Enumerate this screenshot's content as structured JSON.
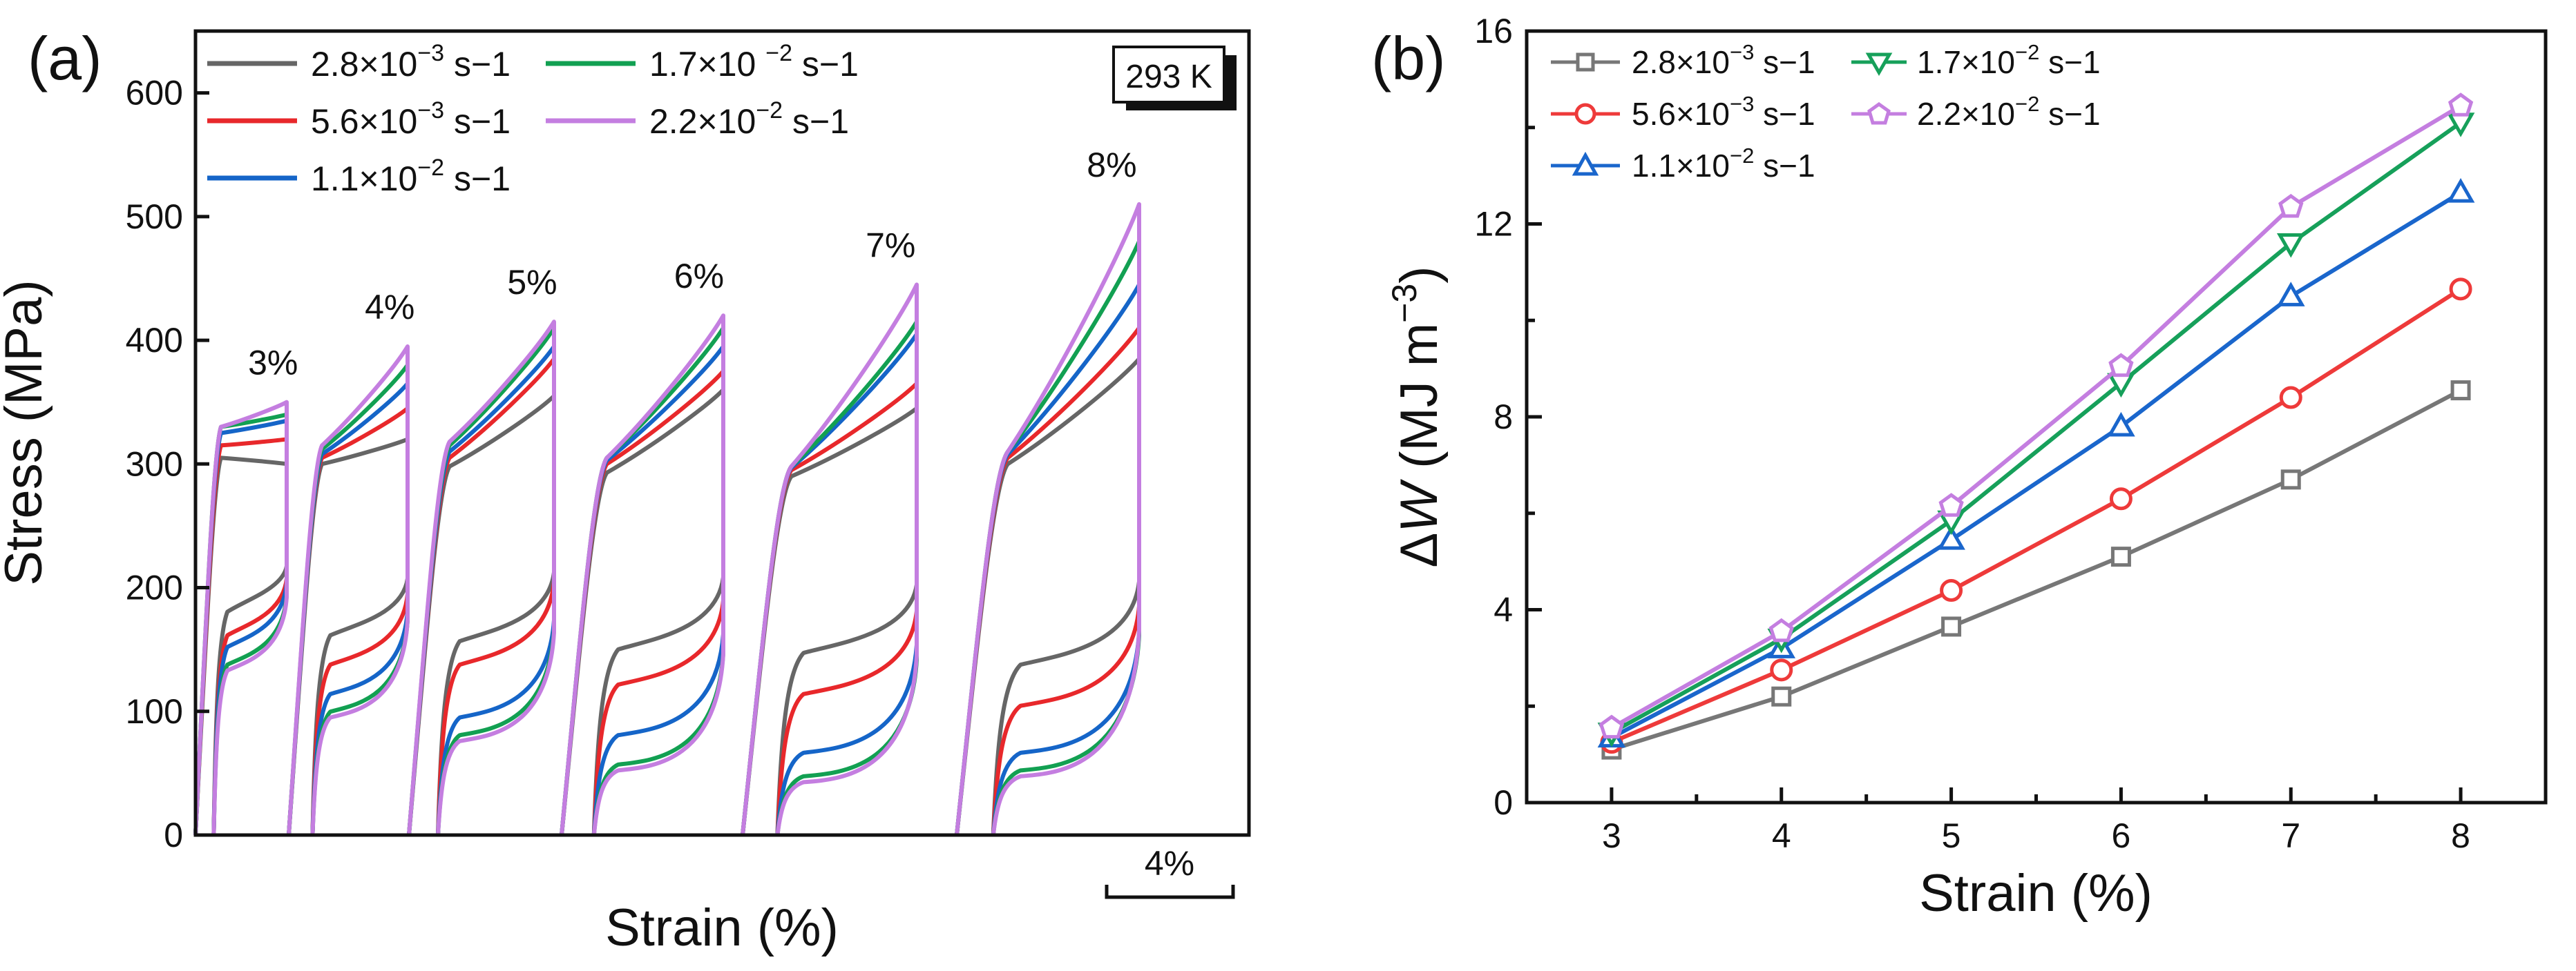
{
  "panel_labels": {
    "a": "(a)",
    "b": "(b)"
  },
  "legend_sup": {
    "neg3": "−3",
    "neg2": "−2"
  },
  "legend_text": {
    "s28": {
      "base": "2.8×10",
      "exp": "−3",
      "unit": "s−1"
    },
    "s56": {
      "base": "5.6×10",
      "exp": "−3",
      "unit": "s−1"
    },
    "s11": {
      "base": "1.1×10",
      "exp": "−2",
      "unit": "s−1"
    },
    "s17": {
      "base": "1.7×10 ",
      "exp": "−2",
      "unit": "s−1"
    },
    "s22": {
      "base": "2.2×10",
      "exp": "−2",
      "unit": "s−1"
    }
  },
  "legend_text_b": {
    "s28": {
      "base": "2.8×10",
      "exp": "−3",
      "unit": "s−1"
    },
    "s56": {
      "base": "5.6×10",
      "exp": "−3",
      "unit": "s−1"
    },
    "s11": {
      "base": "1.1×10",
      "exp": "−2",
      "unit": "s−1"
    },
    "s17": {
      "base": "1.7×10",
      "exp": "−2",
      "unit": "s−1"
    },
    "s22": {
      "base": "2.2×10",
      "exp": "−2",
      "unit": "s−1"
    }
  },
  "chart_data": [
    {
      "type": "line",
      "panel": "(a)",
      "title": "",
      "xlabel": "Strain (%)",
      "ylabel": "Stress (MPa)",
      "ylim": [
        0,
        650
      ],
      "yticks": [
        "0",
        "100",
        "200",
        "300",
        "400",
        "500",
        "600"
      ],
      "temperature_label": "293 K",
      "scale_bar_label": "4%",
      "colors": {
        "s28": "#666666",
        "s56": "#e8282b",
        "s11": "#1565c8",
        "s17": "#12a052",
        "s22": "#c47ee0"
      },
      "series_names": [
        "2.8×10⁻³ s⁻¹",
        "5.6×10⁻³ s⁻¹",
        "1.1×10⁻² s⁻¹",
        "1.7×10⁻² s⁻¹",
        "2.2×10⁻² s⁻¹"
      ],
      "cycles": [
        {
          "label": "3%",
          "strain_max": 3,
          "max_stress": {
            "s28": 300,
            "s56": 320,
            "s11": 335,
            "s17": 340,
            "s22": 350
          },
          "plateau_upper": {
            "s28": 305,
            "s56": 315,
            "s11": 325,
            "s17": 330,
            "s22": 330
          },
          "plateau_lower": {
            "s28": 190,
            "s56": 170,
            "s11": 160,
            "s17": 145,
            "s22": 140
          }
        },
        {
          "label": "4%",
          "strain_max": 4,
          "max_stress": {
            "s28": 320,
            "s56": 345,
            "s11": 365,
            "s17": 380,
            "s22": 395
          },
          "plateau_upper": {
            "s28": 300,
            "s56": 305,
            "s11": 308,
            "s17": 312,
            "s22": 315
          },
          "plateau_lower": {
            "s28": 170,
            "s56": 145,
            "s11": 120,
            "s17": 105,
            "s22": 100
          }
        },
        {
          "label": "5%",
          "strain_max": 5,
          "max_stress": {
            "s28": 355,
            "s56": 385,
            "s11": 395,
            "s17": 410,
            "s22": 415
          },
          "plateau_upper": {
            "s28": 298,
            "s56": 305,
            "s11": 310,
            "s17": 315,
            "s22": 318
          },
          "plateau_lower": {
            "s28": 165,
            "s56": 145,
            "s11": 100,
            "s17": 85,
            "s22": 80
          }
        },
        {
          "label": "6%",
          "strain_max": 6,
          "max_stress": {
            "s28": 360,
            "s56": 375,
            "s11": 395,
            "s17": 410,
            "s22": 420
          },
          "plateau_upper": {
            "s28": 293,
            "s56": 300,
            "s11": 303,
            "s17": 305,
            "s22": 305
          },
          "plateau_lower": {
            "s28": 158,
            "s56": 128,
            "s11": 85,
            "s17": 60,
            "s22": 55
          }
        },
        {
          "label": "7%",
          "strain_max": 7,
          "max_stress": {
            "s28": 345,
            "s56": 365,
            "s11": 405,
            "s17": 415,
            "s22": 445
          },
          "plateau_upper": {
            "s28": 290,
            "s56": 295,
            "s11": 297,
            "s17": 298,
            "s22": 298
          },
          "plateau_lower": {
            "s28": 155,
            "s56": 120,
            "s11": 70,
            "s17": 50,
            "s22": 45
          }
        },
        {
          "label": "8%",
          "strain_max": 8,
          "max_stress": {
            "s28": 385,
            "s56": 410,
            "s11": 445,
            "s17": 480,
            "s22": 510
          },
          "plateau_upper": {
            "s28": 300,
            "s56": 305,
            "s11": 308,
            "s17": 310,
            "s22": 310
          },
          "plateau_lower": {
            "s28": 145,
            "s56": 110,
            "s11": 70,
            "s17": 55,
            "s22": 50
          }
        }
      ]
    },
    {
      "type": "line",
      "panel": "(b)",
      "title": "",
      "xlabel": "Strain (%)",
      "ylabel": "ΔW (MJ m⁻³)",
      "ylabel_parts": {
        "delta": "Δ",
        "w": "W",
        "units": " (MJ m",
        "exp": "−3",
        "close": ")"
      },
      "x": [
        3,
        4,
        5,
        6,
        7,
        8
      ],
      "xlim": [
        2.5,
        8.5
      ],
      "ylim": [
        0,
        16
      ],
      "xticks": [
        "3",
        "4",
        "5",
        "6",
        "7",
        "8"
      ],
      "yticks": [
        "0",
        "4",
        "8",
        "12",
        "16"
      ],
      "series": [
        {
          "key": "s28",
          "name": "2.8×10⁻³ s⁻¹",
          "color": "#777777",
          "marker": "square",
          "values": [
            1.1,
            2.2,
            3.65,
            5.1,
            6.7,
            8.55
          ]
        },
        {
          "key": "s56",
          "name": "5.6×10⁻³ s⁻¹",
          "color": "#ee3a3a",
          "marker": "circle",
          "values": [
            1.25,
            2.75,
            4.4,
            6.3,
            8.4,
            10.65
          ]
        },
        {
          "key": "s11",
          "name": "1.1×10⁻² s⁻¹",
          "color": "#1a66cc",
          "marker": "triangle-up",
          "values": [
            1.35,
            3.2,
            5.45,
            7.8,
            10.5,
            12.65
          ]
        },
        {
          "key": "s17",
          "name": "1.7×10⁻² s⁻¹",
          "color": "#16a05a",
          "marker": "triangle-down",
          "values": [
            1.45,
            3.4,
            5.85,
            8.7,
            11.6,
            14.1
          ]
        },
        {
          "key": "s22",
          "name": "2.2×10⁻² s⁻¹",
          "color": "#c47ee0",
          "marker": "pentagon",
          "values": [
            1.55,
            3.55,
            6.15,
            9.05,
            12.35,
            14.45
          ]
        }
      ]
    }
  ]
}
